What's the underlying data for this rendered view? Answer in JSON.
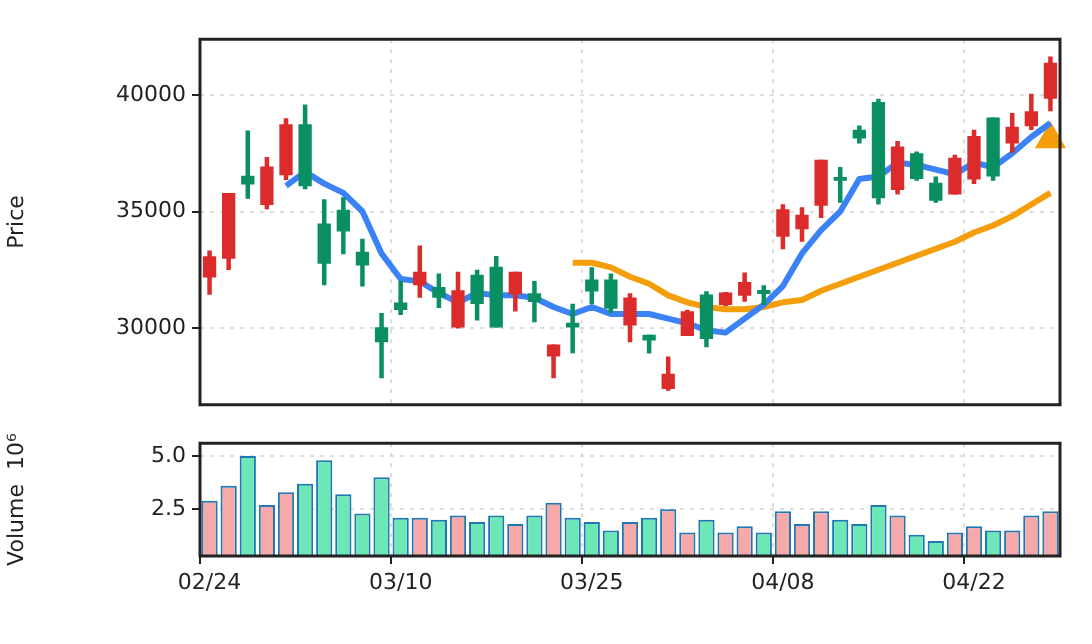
{
  "chart_data": [
    {
      "type": "candlestick",
      "ylabel": "Price",
      "ohlc": [
        [
          32200,
          33300,
          31450,
          33050
        ],
        [
          33000,
          35770,
          32520,
          35770
        ],
        [
          36510,
          38450,
          35580,
          36190
        ],
        [
          35310,
          37310,
          35130,
          36910
        ],
        [
          36590,
          38980,
          36380,
          38715
        ],
        [
          38715,
          39565,
          35980,
          36110
        ],
        [
          34460,
          35500,
          31860,
          32790
        ],
        [
          35050,
          35580,
          33190,
          34170
        ],
        [
          33240,
          33800,
          31810,
          32710
        ],
        [
          30000,
          30610,
          27870,
          29415
        ],
        [
          31060,
          31990,
          30585,
          30800
        ],
        [
          31860,
          33510,
          31330,
          32390
        ],
        [
          31730,
          32310,
          30880,
          31330
        ],
        [
          30050,
          32390,
          30000,
          31590
        ],
        [
          32260,
          32470,
          30345,
          31060
        ],
        [
          32600,
          33060,
          30050,
          30050
        ],
        [
          31460,
          32390,
          30740,
          32390
        ],
        [
          31460,
          31990,
          30270,
          31140
        ],
        [
          28800,
          29260,
          27870,
          29260
        ],
        [
          30190,
          31010,
          28940,
          30050
        ],
        [
          32050,
          32580,
          31060,
          31590
        ],
        [
          32050,
          32310,
          30660,
          30850
        ],
        [
          30130,
          31460,
          29415,
          31280
        ],
        [
          29680,
          29680,
          28930,
          29490
        ],
        [
          27410,
          28750,
          27330,
          28000
        ],
        [
          29680,
          30750,
          29680,
          30690
        ],
        [
          31410,
          31550,
          29200,
          29550
        ],
        [
          31010,
          31520,
          30960,
          31490
        ],
        [
          31410,
          32350,
          31150,
          31950
        ],
        [
          31600,
          31810,
          31010,
          31490
        ],
        [
          33950,
          35280,
          33410,
          35070
        ],
        [
          34270,
          35150,
          33730,
          34830
        ],
        [
          35280,
          37200,
          34750,
          37200
        ],
        [
          36450,
          36880,
          35410,
          36350
        ],
        [
          38480,
          38670,
          37950,
          38160
        ],
        [
          39680,
          39810,
          35330,
          35600
        ],
        [
          35950,
          38000,
          35760,
          37760
        ],
        [
          37470,
          37550,
          36350,
          36430
        ],
        [
          36210,
          36480,
          35410,
          35490
        ],
        [
          35760,
          37410,
          35760,
          37280
        ],
        [
          36400,
          38480,
          36210,
          38210
        ],
        [
          39010,
          39010,
          36350,
          36530
        ],
        [
          37950,
          39200,
          37550,
          38610
        ],
        [
          38690,
          40030,
          38530,
          39280
        ],
        [
          39870,
          41630,
          39330,
          41360
        ]
      ],
      "colors": [
        "#dc2b2b",
        "#dc2b2b",
        "#0a8f63",
        "#dc2b2b",
        "#dc2b2b",
        "#0a8f63",
        "#0a8f63",
        "#0a8f63",
        "#0a8f63",
        "#0a8f63",
        "#0a8f63",
        "#dc2b2b",
        "#0a8f63",
        "#dc2b2b",
        "#0a8f63",
        "#0a8f63",
        "#dc2b2b",
        "#0a8f63",
        "#dc2b2b",
        "#0a8f63",
        "#0a8f63",
        "#0a8f63",
        "#dc2b2b",
        "#0a8f63",
        "#dc2b2b",
        "#dc2b2b",
        "#0a8f63",
        "#dc2b2b",
        "#dc2b2b",
        "#0a8f63",
        "#dc2b2b",
        "#dc2b2b",
        "#dc2b2b",
        "#0a8f63",
        "#0a8f63",
        "#0a8f63",
        "#dc2b2b",
        "#0a8f63",
        "#0a8f63",
        "#dc2b2b",
        "#dc2b2b",
        "#0a8f63",
        "#dc2b2b",
        "#dc2b2b",
        "#dc2b2b"
      ],
      "series": [
        {
          "type": "line",
          "color": "#3b82f6",
          "values": [
            null,
            null,
            null,
            null,
            36100,
            36700,
            36200,
            35800,
            35000,
            33200,
            32100,
            32000,
            31500,
            31100,
            31500,
            31400,
            31400,
            31300,
            30900,
            30600,
            30900,
            30600,
            30600,
            30600,
            30400,
            30200,
            29900,
            29800,
            30400,
            31000,
            31800,
            33200,
            34200,
            35000,
            36400,
            36500,
            37100,
            37000,
            36800,
            36600,
            37100,
            36900,
            37500,
            38200,
            38800
          ]
        },
        {
          "type": "line",
          "color": "#f59e0b",
          "values": [
            null,
            null,
            null,
            null,
            null,
            null,
            null,
            null,
            null,
            null,
            null,
            null,
            null,
            null,
            null,
            null,
            null,
            null,
            null,
            32800,
            32800,
            32600,
            32200,
            31900,
            31400,
            31100,
            30900,
            30800,
            30800,
            30900,
            31100,
            31200,
            31600,
            31900,
            32200,
            32500,
            32800,
            33100,
            33400,
            33700,
            34100,
            34400,
            34800,
            35300,
            35800
          ]
        },
        {
          "type": "scatter",
          "color": "#f59e0b",
          "marker": "triangle",
          "values": [
            null,
            null,
            null,
            null,
            null,
            null,
            null,
            null,
            null,
            null,
            null,
            null,
            null,
            null,
            null,
            null,
            null,
            null,
            null,
            null,
            null,
            null,
            null,
            null,
            null,
            null,
            null,
            null,
            null,
            null,
            null,
            null,
            null,
            null,
            null,
            null,
            null,
            null,
            null,
            null,
            null,
            null,
            null,
            null,
            38100
          ]
        }
      ],
      "ylim": [
        26700,
        42400
      ],
      "yticks": [
        30000,
        35000,
        40000
      ],
      "grid": true,
      "tick_labels": "y"
    },
    {
      "type": "bar",
      "ylabel": "Volume  10⁶",
      "categories": [
        "02/24",
        null,
        null,
        null,
        null,
        null,
        null,
        null,
        null,
        null,
        "03/10",
        null,
        null,
        null,
        null,
        null,
        null,
        null,
        null,
        null,
        "03/25",
        null,
        null,
        null,
        null,
        null,
        null,
        null,
        null,
        null,
        "04/08",
        null,
        null,
        null,
        null,
        null,
        null,
        null,
        null,
        null,
        "04/22",
        null,
        null,
        null,
        null
      ],
      "values": [
        2.9,
        3.6,
        5.0,
        2.7,
        3.3,
        3.7,
        4.8,
        3.2,
        2.3,
        4.0,
        2.1,
        2.1,
        2.0,
        2.2,
        1.9,
        2.2,
        1.8,
        2.2,
        2.8,
        2.1,
        1.9,
        1.5,
        1.9,
        2.1,
        2.5,
        1.4,
        2.0,
        1.4,
        1.7,
        1.4,
        2.4,
        1.8,
        2.4,
        2.0,
        1.8,
        2.7,
        2.2,
        1.3,
        1.0,
        1.4,
        1.7,
        1.5,
        1.5,
        2.2,
        2.4
      ],
      "colors": [
        "#f7a8a8",
        "#f7a8a8",
        "#6ee7b7",
        "#f7a8a8",
        "#f7a8a8",
        "#6ee7b7",
        "#6ee7b7",
        "#6ee7b7",
        "#6ee7b7",
        "#6ee7b7",
        "#6ee7b7",
        "#f7a8a8",
        "#6ee7b7",
        "#f7a8a8",
        "#6ee7b7",
        "#6ee7b7",
        "#f7a8a8",
        "#6ee7b7",
        "#f7a8a8",
        "#6ee7b7",
        "#6ee7b7",
        "#6ee7b7",
        "#f7a8a8",
        "#6ee7b7",
        "#f7a8a8",
        "#f7a8a8",
        "#6ee7b7",
        "#f7a8a8",
        "#f7a8a8",
        "#6ee7b7",
        "#f7a8a8",
        "#f7a8a8",
        "#f7a8a8",
        "#6ee7b7",
        "#6ee7b7",
        "#6ee7b7",
        "#f7a8a8",
        "#6ee7b7",
        "#6ee7b7",
        "#f7a8a8",
        "#f7a8a8",
        "#6ee7b7",
        "#f7a8a8",
        "#f7a8a8",
        "#f7a8a8"
      ],
      "ylim": [
        0.3,
        5.6
      ],
      "yticks": [
        {
          "value": 2.5,
          "label": "2.5"
        },
        {
          "value": 5,
          "label": "5.0"
        }
      ],
      "grid": true
    }
  ]
}
